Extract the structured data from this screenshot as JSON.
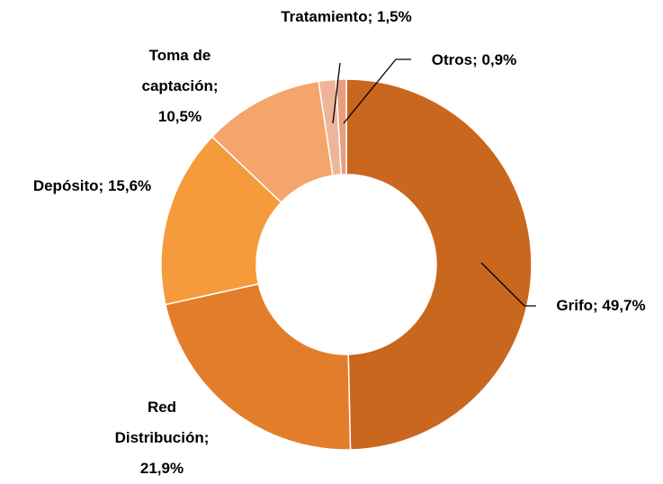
{
  "chart_data": {
    "type": "donut",
    "categories": [
      "Grifo;",
      "Red Distribución;",
      "Depósito;",
      "Toma de captación;",
      "Tratamiento;",
      "Otros;"
    ],
    "values": [
      49.7,
      21.9,
      15.6,
      10.5,
      1.5,
      0.9
    ],
    "value_labels": [
      "49,7%",
      "21,9%",
      "15,6%",
      "10,5%",
      "1,5%",
      "0,9%"
    ],
    "colors": [
      "#c9671f",
      "#e27e2b",
      "#f59b3b",
      "#f3a56b",
      "#efb59b",
      "#e79f80"
    ]
  }
}
